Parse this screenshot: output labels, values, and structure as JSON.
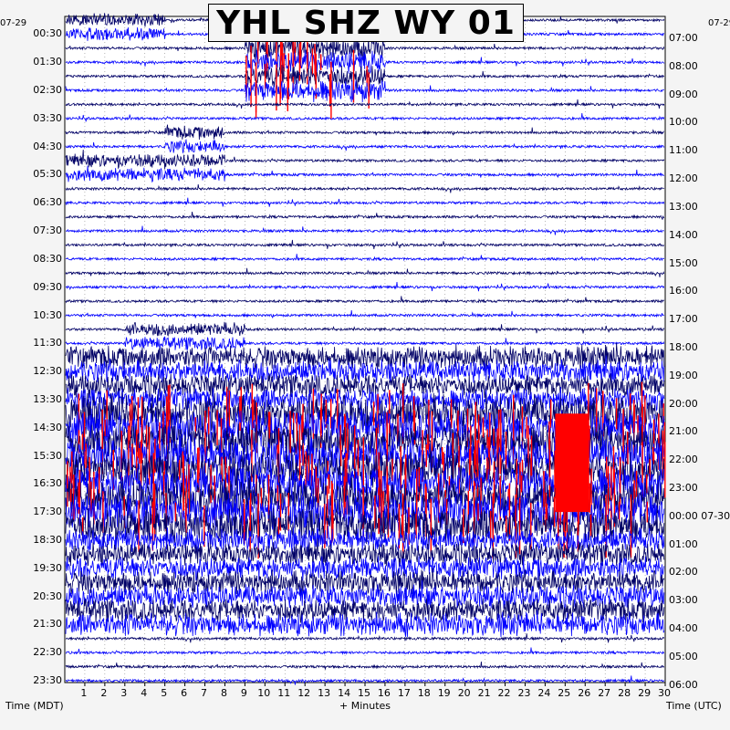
{
  "title": "YHL SHZ WY 01",
  "left_date": "07-29",
  "right_date": "07-29",
  "right_date_next": "07-30",
  "xlabel": "+ Minutes",
  "left_axis_caption": "Time (MDT)",
  "right_axis_caption": "Time (UTC)",
  "colors": {
    "navy": "#000066",
    "blue": "#0000ff",
    "red": "#ff0000",
    "background": "#f4f4f4"
  },
  "chart_data": {
    "type": "helicorder",
    "title": "YHL SHZ WY 01",
    "xlabel": "+ Minutes",
    "x_ticks": [
      "1",
      "2",
      "3",
      "4",
      "5",
      "6",
      "7",
      "8",
      "9",
      "10",
      "11",
      "12",
      "13",
      "14",
      "15",
      "16",
      "17",
      "18",
      "19",
      "20",
      "21",
      "22",
      "23",
      "24",
      "25",
      "26",
      "27",
      "28",
      "29",
      "30"
    ],
    "xlim": [
      0,
      30
    ],
    "line_interval_minutes": 30,
    "rows": 48,
    "left_time_labels": [
      "00:30",
      "01:30",
      "02:30",
      "03:30",
      "04:30",
      "05:30",
      "06:30",
      "07:30",
      "08:30",
      "09:30",
      "10:30",
      "11:30",
      "12:30",
      "13:30",
      "14:30",
      "15:30",
      "16:30",
      "17:30",
      "18:30",
      "19:30",
      "20:30",
      "21:30",
      "22:30",
      "23:30"
    ],
    "right_time_labels": [
      "07:00",
      "08:00",
      "09:00",
      "10:00",
      "11:00",
      "12:00",
      "13:00",
      "14:00",
      "15:00",
      "16:00",
      "17:00",
      "18:00",
      "19:00",
      "20:00",
      "21:00",
      "22:00",
      "23:00",
      "00:00",
      "01:00",
      "02:00",
      "03:00",
      "04:00",
      "05:00",
      "06:00"
    ],
    "trace_colors_cycle": [
      "navy",
      "blue",
      "navy",
      "blue"
    ],
    "clipped_color": "red",
    "activity_bursts": [
      {
        "rows": [
          0,
          1
        ],
        "minutes": [
          0,
          5
        ],
        "level": "moderate"
      },
      {
        "rows": [
          2,
          5
        ],
        "minutes": [
          9,
          16
        ],
        "level": "high",
        "clipped": true
      },
      {
        "rows": [
          8,
          11
        ],
        "minutes": [
          5,
          8
        ],
        "level": "moderate"
      },
      {
        "rows": [
          10,
          11
        ],
        "minutes": [
          0,
          7
        ],
        "level": "moderate"
      },
      {
        "rows": [
          22,
          23
        ],
        "minutes": [
          3,
          9
        ],
        "level": "moderate"
      },
      {
        "rows": [
          24,
          28
        ],
        "minutes": [
          0,
          30
        ],
        "level": "high"
      },
      {
        "rows": [
          28,
          36
        ],
        "minutes": [
          0,
          30
        ],
        "level": "very high",
        "clipped": true
      },
      {
        "rows": [
          36,
          43
        ],
        "minutes": [
          0,
          30
        ],
        "level": "high"
      }
    ]
  }
}
